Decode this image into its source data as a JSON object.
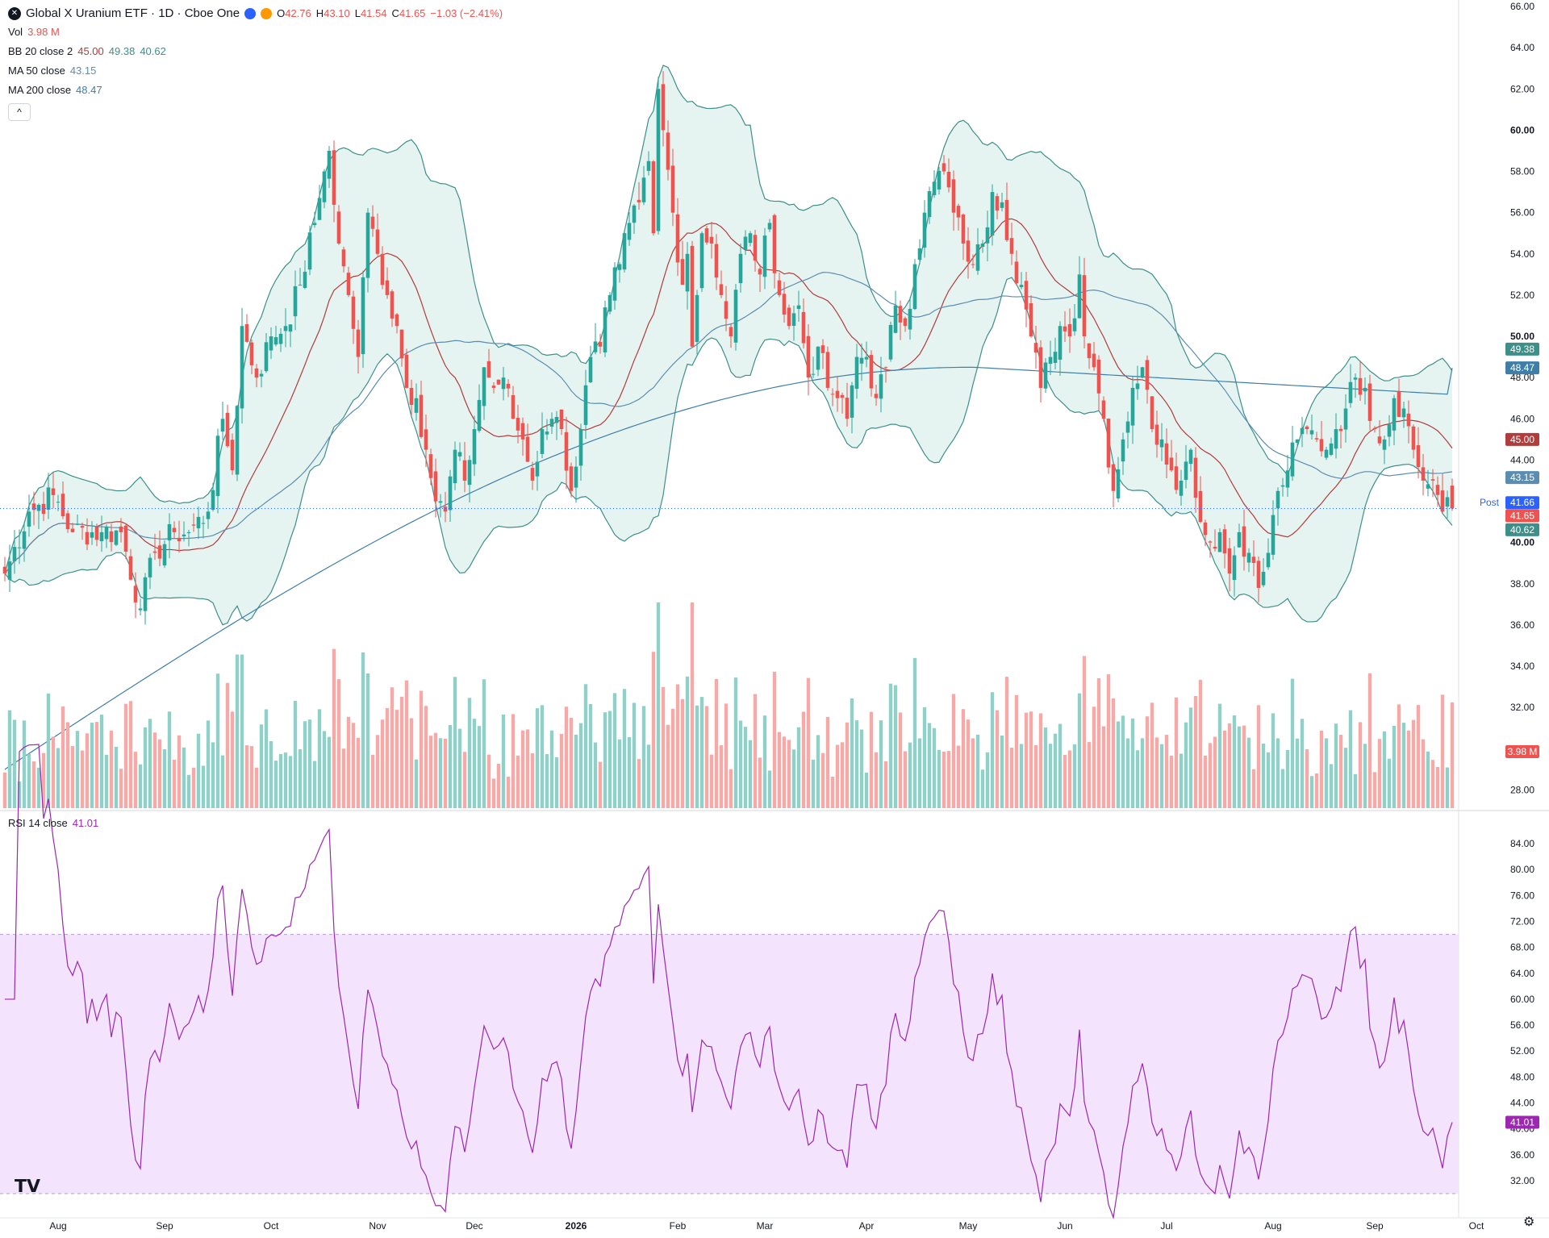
{
  "header": {
    "symbol_icon": "uranium-logo-icon",
    "title": "Global X Uranium ETF · 1D · Cboe One",
    "ohlc": {
      "o_label": "O",
      "o_value": "42.76",
      "h_label": "H",
      "h_value": "43.10",
      "l_label": "L",
      "l_value": "41.54",
      "c_label": "C",
      "c_value": "41.65",
      "change": "−1.03 (−2.41%)"
    },
    "vol_label": "Vol",
    "vol_value": "3.98 M",
    "bb_label": "BB 20 close 2",
    "bb_mid": "45.00",
    "bb_upper": "49.38",
    "bb_lower": "40.62",
    "ma50_label": "MA 50 close",
    "ma50_value": "43.15",
    "ma200_label": "MA 200 close",
    "ma200_value": "48.47",
    "rsi_label": "RSI 14 close",
    "rsi_value": "41.01",
    "collapse_glyph": "^"
  },
  "colors": {
    "up": "#26a69a",
    "down": "#ef5350",
    "vol_up": "#8fd0c8",
    "vol_down": "#f7a9a7",
    "bb_fill": "#e6f4f1",
    "bb_band": "#3d8f8a",
    "bb_mid": "#b23b3b",
    "ma200": "#3f7ea6",
    "ma50": "#5b8db0",
    "rsi_line": "#9c27b0",
    "rsi_fill": "#f3e3fc",
    "post": "#2962ff"
  },
  "price_axis": {
    "ticks": [
      "66.00",
      "64.00",
      "62.00",
      "60.00",
      "58.00",
      "56.00",
      "54.00",
      "52.00",
      "50.00",
      "48.00",
      "46.00",
      "44.00",
      "42.00",
      "40.00",
      "38.00",
      "36.00",
      "34.00",
      "32.00",
      "30.00",
      "28.00"
    ],
    "bold": [
      "60.00",
      "50.00",
      "40.00"
    ],
    "badges": [
      {
        "text": "49.38",
        "value": 49.38,
        "kind": "bb"
      },
      {
        "text": "48.47",
        "value": 48.47,
        "kind": "ma200"
      },
      {
        "text": "45.00",
        "value": 45.0,
        "kind": "bbmid"
      },
      {
        "text": "43.15",
        "value": 43.15,
        "kind": "ma50"
      },
      {
        "text": "41.66",
        "value": 41.66,
        "kind": "post",
        "prefix": "Post"
      },
      {
        "text": "41.65",
        "value": 41.65,
        "kind": "last"
      },
      {
        "text": "40.62",
        "value": 40.62,
        "kind": "bb"
      }
    ],
    "vol_badge": "3.98 M"
  },
  "rsi_axis": {
    "ticks": [
      "84.00",
      "80.00",
      "76.00",
      "72.00",
      "68.00",
      "64.00",
      "60.00",
      "56.00",
      "52.00",
      "48.00",
      "44.00",
      "40.00",
      "36.00",
      "32.00"
    ],
    "badge": "41.01",
    "band_upper": 70,
    "band_lower": 30
  },
  "time_axis": {
    "labels": [
      {
        "text": "Aug",
        "bar": 11
      },
      {
        "text": "Sep",
        "bar": 33
      },
      {
        "text": "Oct",
        "bar": 55
      },
      {
        "text": "Nov",
        "bar": 77
      },
      {
        "text": "Dec",
        "bar": 97
      },
      {
        "text": "2026",
        "bar": 118,
        "bold": true
      },
      {
        "text": "Feb",
        "bar": 139
      },
      {
        "text": "Mar",
        "bar": 157
      },
      {
        "text": "Apr",
        "bar": 178
      },
      {
        "text": "May",
        "bar": 199
      },
      {
        "text": "Jun",
        "bar": 219
      },
      {
        "text": "Jul",
        "bar": 240
      },
      {
        "text": "Aug",
        "bar": 262
      },
      {
        "text": "Sep",
        "bar": 283
      },
      {
        "text": "Oct",
        "bar": 304
      }
    ]
  },
  "chart_data": {
    "type": "candlestick",
    "title": "Global X Uranium ETF · 1D · Cboe One",
    "price_range": [
      27,
      66
    ],
    "rsi_range": [
      30,
      86
    ],
    "anchors_close": [
      [
        0,
        38.5
      ],
      [
        5,
        41.5
      ],
      [
        10,
        42.3
      ],
      [
        14,
        40.5
      ],
      [
        20,
        40.5
      ],
      [
        24,
        40.5
      ],
      [
        28,
        36.8
      ],
      [
        31,
        39.5
      ],
      [
        35,
        40.5
      ],
      [
        38,
        40.5
      ],
      [
        42,
        41.5
      ],
      [
        45,
        46.0
      ],
      [
        47,
        43.5
      ],
      [
        49,
        50.5
      ],
      [
        52,
        48.0
      ],
      [
        55,
        50.0
      ],
      [
        58,
        50.5
      ],
      [
        61,
        52.5
      ],
      [
        64,
        55.5
      ],
      [
        66,
        58.0
      ],
      [
        67,
        59.0
      ],
      [
        69,
        54.5
      ],
      [
        71,
        52.0
      ],
      [
        73,
        49.0
      ],
      [
        75,
        56.0
      ],
      [
        77,
        54.0
      ],
      [
        79,
        52.0
      ],
      [
        81,
        50.5
      ],
      [
        83,
        47.5
      ],
      [
        85,
        47.0
      ],
      [
        87,
        44.5
      ],
      [
        89,
        42.0
      ],
      [
        91,
        41.5
      ],
      [
        93,
        44.5
      ],
      [
        95,
        43.0
      ],
      [
        97,
        45.5
      ],
      [
        99,
        48.5
      ],
      [
        101,
        47.5
      ],
      [
        103,
        48.0
      ],
      [
        105,
        46.0
      ],
      [
        107,
        45.0
      ],
      [
        109,
        43.0
      ],
      [
        111,
        45.5
      ],
      [
        113,
        46.0
      ],
      [
        115,
        45.5
      ],
      [
        117,
        42.5
      ],
      [
        119,
        45.5
      ],
      [
        121,
        49.0
      ],
      [
        123,
        49.5
      ],
      [
        125,
        52.0
      ],
      [
        127,
        53.5
      ],
      [
        129,
        55.5
      ],
      [
        131,
        56.5
      ],
      [
        133,
        58.5
      ],
      [
        134,
        55.0
      ],
      [
        135,
        62.0
      ],
      [
        136,
        60.0
      ],
      [
        138,
        56.0
      ],
      [
        140,
        52.5
      ],
      [
        141,
        54.0
      ],
      [
        142,
        49.5
      ],
      [
        144,
        55.0
      ],
      [
        146,
        54.5
      ],
      [
        148,
        52.0
      ],
      [
        150,
        50.0
      ],
      [
        152,
        54.0
      ],
      [
        154,
        55.0
      ],
      [
        156,
        53.0
      ],
      [
        158,
        55.5
      ],
      [
        160,
        52.0
      ],
      [
        162,
        50.5
      ],
      [
        164,
        51.5
      ],
      [
        166,
        48.0
      ],
      [
        168,
        49.5
      ],
      [
        170,
        47.5
      ],
      [
        172,
        47.0
      ],
      [
        174,
        46.0
      ],
      [
        176,
        49.0
      ],
      [
        178,
        49.0
      ],
      [
        180,
        47.0
      ],
      [
        182,
        48.5
      ],
      [
        184,
        51.5
      ],
      [
        186,
        50.5
      ],
      [
        188,
        53.5
      ],
      [
        190,
        56.0
      ],
      [
        192,
        57.5
      ],
      [
        194,
        58.0
      ],
      [
        196,
        56.0
      ],
      [
        198,
        54.5
      ],
      [
        200,
        53.5
      ],
      [
        202,
        54.5
      ],
      [
        204,
        57.0
      ],
      [
        206,
        56.5
      ],
      [
        208,
        54.0
      ],
      [
        210,
        52.5
      ],
      [
        212,
        50.0
      ],
      [
        214,
        47.5
      ],
      [
        216,
        49.0
      ],
      [
        218,
        50.5
      ],
      [
        220,
        50.0
      ],
      [
        222,
        53.0
      ],
      [
        223,
        50.0
      ],
      [
        225,
        48.5
      ],
      [
        227,
        46.0
      ],
      [
        229,
        42.5
      ],
      [
        231,
        45.0
      ],
      [
        233,
        47.5
      ],
      [
        235,
        48.5
      ],
      [
        237,
        45.5
      ],
      [
        239,
        45.0
      ],
      [
        241,
        43.5
      ],
      [
        243,
        43.0
      ],
      [
        245,
        44.5
      ],
      [
        247,
        41.0
      ],
      [
        249,
        40.0
      ],
      [
        251,
        40.5
      ],
      [
        253,
        38.5
      ],
      [
        255,
        40.5
      ],
      [
        257,
        39.5
      ],
      [
        259,
        37.8
      ],
      [
        261,
        39.5
      ],
      [
        263,
        42.5
      ],
      [
        265,
        43.5
      ],
      [
        267,
        45.0
      ],
      [
        269,
        45.5
      ],
      [
        271,
        45.0
      ],
      [
        273,
        44.5
      ],
      [
        275,
        45.5
      ],
      [
        277,
        46.5
      ],
      [
        279,
        48.0
      ],
      [
        281,
        47.5
      ],
      [
        283,
        45.5
      ],
      [
        285,
        45.0
      ],
      [
        287,
        47.0
      ],
      [
        289,
        46.5
      ],
      [
        291,
        44.5
      ],
      [
        293,
        43.0
      ],
      [
        295,
        43.0
      ],
      [
        297,
        41.5
      ],
      [
        298,
        42.2
      ],
      [
        299,
        41.65
      ]
    ],
    "bars": 300,
    "series": [
      {
        "name": "BB 20 close 2",
        "last": [
          45.0,
          49.38,
          40.62
        ]
      },
      {
        "name": "MA 50 close",
        "last": 43.15
      },
      {
        "name": "MA 200 close",
        "last": 48.47
      },
      {
        "name": "RSI 14 close",
        "last": 41.01
      }
    ],
    "last_volume": "3.98 M"
  }
}
